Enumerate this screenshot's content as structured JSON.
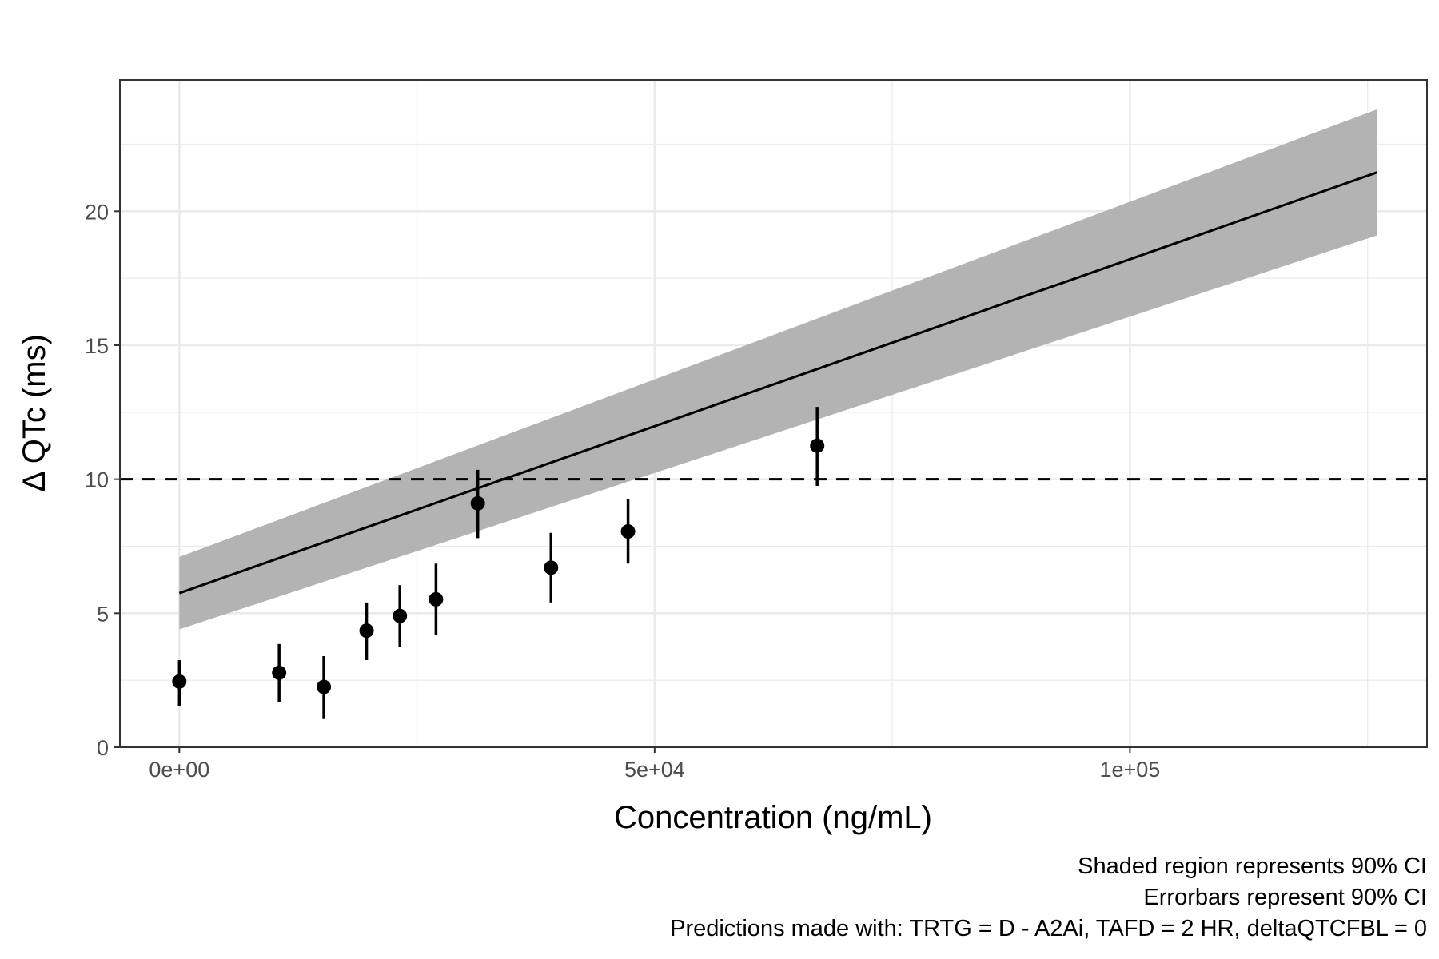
{
  "chart_data": {
    "type": "scatter",
    "xlabel": "Concentration (ng/mL)",
    "ylabel": "Δ QTc (ms)",
    "xlim": [
      -6250,
      131250
    ],
    "ylim": [
      0,
      24.9
    ],
    "x_ticks": [
      {
        "value": 0,
        "label": "0e+00"
      },
      {
        "value": 50000,
        "label": "5e+04"
      },
      {
        "value": 100000,
        "label": "1e+05"
      }
    ],
    "y_ticks": [
      {
        "value": 0,
        "label": "0"
      },
      {
        "value": 5,
        "label": "5"
      },
      {
        "value": 10,
        "label": "10"
      },
      {
        "value": 15,
        "label": "15"
      },
      {
        "value": 20,
        "label": "20"
      }
    ],
    "x_minor_gridlines": [
      25000,
      75000,
      125000
    ],
    "y_minor_gridlines": [
      2.5,
      7.5,
      12.5,
      17.5,
      22.5
    ],
    "grid": true,
    "reference_line": {
      "y": 10,
      "style": "dashed"
    },
    "points": [
      {
        "x": 0,
        "y": 2.45,
        "lower": 1.55,
        "upper": 3.25
      },
      {
        "x": 10500,
        "y": 2.78,
        "lower": 1.7,
        "upper": 3.85
      },
      {
        "x": 15200,
        "y": 2.25,
        "lower": 1.05,
        "upper": 3.4
      },
      {
        "x": 19700,
        "y": 4.35,
        "lower": 3.25,
        "upper": 5.4
      },
      {
        "x": 23200,
        "y": 4.9,
        "lower": 3.75,
        "upper": 6.05
      },
      {
        "x": 27000,
        "y": 5.52,
        "lower": 4.2,
        "upper": 6.85
      },
      {
        "x": 31400,
        "y": 9.1,
        "lower": 7.8,
        "upper": 10.35
      },
      {
        "x": 39100,
        "y": 6.7,
        "lower": 5.4,
        "upper": 8.0
      },
      {
        "x": 47200,
        "y": 8.05,
        "lower": 6.85,
        "upper": 9.25
      },
      {
        "x": 67100,
        "y": 11.25,
        "lower": 9.75,
        "upper": 12.7
      }
    ],
    "regression": {
      "x": [
        0,
        126000
      ],
      "fit": [
        5.75,
        21.45
      ],
      "lower": [
        4.4,
        19.1
      ],
      "upper": [
        7.1,
        23.8
      ]
    }
  },
  "captions": [
    "Shaded region represents 90% CI",
    "Errorbars represent 90% CI",
    "Predictions made with: TRTG = D - A2Ai, TAFD = 2 HR, deltaQTCFBL = 0"
  ],
  "colors": {
    "ci_band": "#b3b3b3",
    "points": "#000000",
    "grid": "#ebebeb",
    "panel_border": "#333333",
    "tick_label": "#4d4d4d"
  }
}
